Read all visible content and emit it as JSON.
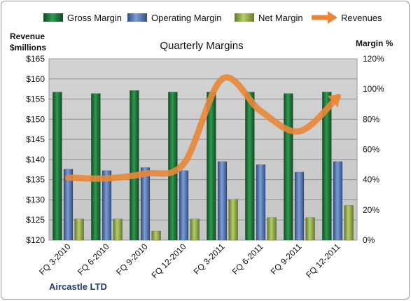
{
  "chart_data": {
    "type": "bar",
    "title": "Quarterly Margins",
    "company": "Aircastle LTD",
    "ylabel_left": [
      "Revenue",
      "$millions"
    ],
    "ylabel_right": "Margin %",
    "categories": [
      "FQ 3-2010",
      "FQ 6-2010",
      "FQ 9-2010",
      "FQ 12-2010",
      "FQ 3-2011",
      "FQ 6-2011",
      "FQ 9-2011",
      "FQ 12-2011"
    ],
    "ylim_left": [
      120,
      165
    ],
    "yticks_left": [
      "$120",
      "$125",
      "$130",
      "$135",
      "$140",
      "$145",
      "$150",
      "$155",
      "$160",
      "$165"
    ],
    "ylim_right": [
      0,
      120
    ],
    "yticks_right": [
      "0%",
      "20%",
      "40%",
      "60%",
      "80%",
      "100%",
      "120%"
    ],
    "grid": true,
    "legend_position": "top",
    "series": [
      {
        "name": "Gross Margin",
        "axis": "right",
        "kind": "bar",
        "color": "#1f7a3c",
        "values": [
          98,
          97,
          99,
          98,
          98,
          98,
          97,
          98
        ]
      },
      {
        "name": "Operating Margin",
        "axis": "right",
        "kind": "bar",
        "color": "#4a6fa8",
        "values": [
          47,
          46,
          48,
          46,
          52,
          50,
          45,
          52
        ]
      },
      {
        "name": "Net Margin",
        "axis": "right",
        "kind": "bar",
        "color": "#8fa84a",
        "values": [
          14,
          14,
          6,
          14,
          27,
          15,
          15,
          23
        ]
      },
      {
        "name": "Revenues",
        "axis": "left",
        "kind": "line",
        "color": "#e8873a",
        "values": [
          135.5,
          135.3,
          136.5,
          139,
          160,
          152,
          147,
          155.5
        ]
      }
    ]
  }
}
